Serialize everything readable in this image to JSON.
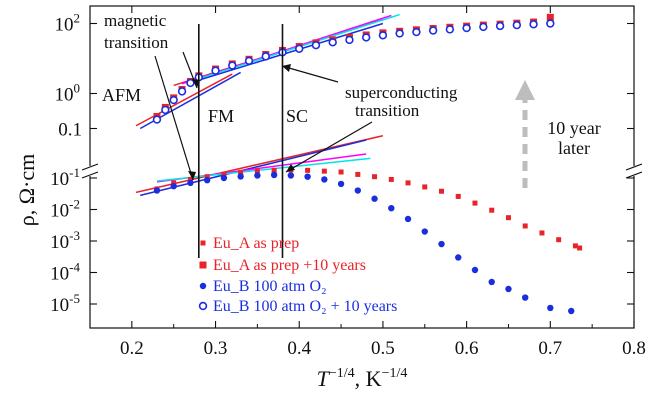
{
  "chart_data": {
    "type": "scatter",
    "xlabel": "T^{-1/4}, K^{-1/4}",
    "ylabel": "ρ, Ω·cm",
    "xlim": [
      0.15,
      0.8
    ],
    "x_ticks": [
      "0.2",
      "0.3",
      "0.4",
      "0.5",
      "0.6",
      "0.7",
      "0.8"
    ],
    "y_log_scale": true,
    "broken_y_axis": true,
    "upper_panel": {
      "ylim_log10": [
        -1.3,
        2.5
      ],
      "y_ticks": [
        {
          "value": 100,
          "label": "10^2"
        },
        {
          "value": 1,
          "label": "10^0"
        },
        {
          "value": 0.1,
          "label": "0.1"
        }
      ]
    },
    "lower_panel": {
      "ylim_log10": [
        -5.5,
        -0.6
      ],
      "y_ticks": [
        {
          "value": 0.1,
          "label": "10^-1"
        },
        {
          "value": 0.01,
          "label": "10^-2"
        },
        {
          "value": 0.001,
          "label": "10^-3"
        },
        {
          "value": 0.0001,
          "label": "10^-4"
        },
        {
          "value": 1e-05,
          "label": "10^-5"
        }
      ]
    },
    "series": [
      {
        "name": "Eu_A as prep",
        "marker": "square-small",
        "color": "#e8232a",
        "panel": "lower",
        "x": [
          0.23,
          0.25,
          0.27,
          0.29,
          0.31,
          0.33,
          0.35,
          0.37,
          0.39,
          0.41,
          0.43,
          0.45,
          0.47,
          0.49,
          0.51,
          0.53,
          0.55,
          0.57,
          0.59,
          0.61,
          0.63,
          0.65,
          0.67,
          0.69,
          0.71,
          0.73,
          0.735
        ],
        "y": [
          0.045,
          0.07,
          0.09,
          0.11,
          0.13,
          0.15,
          0.165,
          0.175,
          0.18,
          0.175,
          0.165,
          0.155,
          0.13,
          0.11,
          0.09,
          0.07,
          0.052,
          0.038,
          0.026,
          0.016,
          0.0095,
          0.0055,
          0.003,
          0.0018,
          0.0011,
          0.0007,
          0.0006
        ]
      },
      {
        "name": "Eu_A as prep +10 years",
        "marker": "square-large",
        "color": "#e8232a",
        "panel": "upper",
        "x": [
          0.23,
          0.24,
          0.25,
          0.26,
          0.27,
          0.28,
          0.3,
          0.32,
          0.34,
          0.36,
          0.38,
          0.4,
          0.42,
          0.44,
          0.46,
          0.48,
          0.5,
          0.52,
          0.54,
          0.56,
          0.58,
          0.6,
          0.62,
          0.64,
          0.66,
          0.68,
          0.7
        ],
        "y": [
          0.22,
          0.4,
          0.75,
          1.3,
          2.2,
          3.2,
          5.0,
          7.0,
          9.5,
          13,
          17,
          22,
          28,
          34,
          40,
          47,
          54,
          60,
          66,
          72,
          78,
          84,
          90,
          96,
          102,
          110,
          150
        ]
      },
      {
        "name": "Eu_B 100 atm O₂",
        "marker": "circle-filled",
        "color": "#1a2ee0",
        "panel": "lower",
        "x": [
          0.23,
          0.25,
          0.27,
          0.29,
          0.31,
          0.33,
          0.35,
          0.37,
          0.39,
          0.41,
          0.43,
          0.45,
          0.47,
          0.49,
          0.51,
          0.53,
          0.55,
          0.57,
          0.59,
          0.61,
          0.63,
          0.65,
          0.67,
          0.7,
          0.725
        ],
        "y": [
          0.04,
          0.055,
          0.07,
          0.085,
          0.1,
          0.112,
          0.12,
          0.125,
          0.12,
          0.11,
          0.09,
          0.065,
          0.04,
          0.022,
          0.011,
          0.005,
          0.002,
          0.0008,
          0.0003,
          0.00012,
          5e-05,
          3e-05,
          1.6e-05,
          7.5e-06,
          6e-06
        ]
      },
      {
        "name": "Eu_B 100 atm O₂ + 10 years",
        "marker": "circle-open",
        "color": "#1a2ee0",
        "panel": "upper",
        "x": [
          0.23,
          0.24,
          0.25,
          0.26,
          0.27,
          0.28,
          0.3,
          0.32,
          0.34,
          0.36,
          0.38,
          0.4,
          0.42,
          0.44,
          0.46,
          0.48,
          0.5,
          0.52,
          0.54,
          0.56,
          0.58,
          0.6,
          0.62,
          0.64,
          0.66,
          0.68,
          0.7
        ],
        "y": [
          0.18,
          0.34,
          0.65,
          1.15,
          2.0,
          2.9,
          4.5,
          6.3,
          8.6,
          11.5,
          15,
          19,
          24,
          29,
          34,
          40,
          46,
          52,
          57,
          63,
          68,
          74,
          80,
          85,
          90,
          95,
          100
        ]
      }
    ],
    "fit_lines": [
      {
        "panel": "upper",
        "color": "#e8232a",
        "x": [
          0.205,
          0.32
        ],
        "y": [
          0.12,
          3.6
        ]
      },
      {
        "panel": "upper",
        "color": "#1a2ee0",
        "x": [
          0.21,
          0.33
        ],
        "y": [
          0.1,
          4.0
        ]
      },
      {
        "panel": "upper",
        "color": "#e8232a",
        "x": [
          0.25,
          0.5
        ],
        "y": [
          1.7,
          130
        ]
      },
      {
        "panel": "upper",
        "color": "#ff00ff",
        "x": [
          0.26,
          0.51
        ],
        "y": [
          1.9,
          170
        ]
      },
      {
        "panel": "upper",
        "color": "#00e5e5",
        "x": [
          0.27,
          0.52
        ],
        "y": [
          2.2,
          180
        ]
      },
      {
        "panel": "upper",
        "color": "#1a2ee0",
        "x": [
          0.28,
          0.5
        ],
        "y": [
          2.4,
          100
        ]
      },
      {
        "panel": "lower",
        "color": "#e8232a",
        "x": [
          0.205,
          0.5
        ],
        "y": [
          0.035,
          2.2
        ]
      },
      {
        "panel": "lower",
        "color": "#1a2ee0",
        "x": [
          0.21,
          0.48
        ],
        "y": [
          0.028,
          1.6
        ]
      },
      {
        "panel": "lower",
        "color": "#ff00ff",
        "x": [
          0.23,
          0.48
        ],
        "y": [
          0.075,
          0.58
        ]
      },
      {
        "panel": "lower",
        "color": "#00e5e5",
        "x": [
          0.23,
          0.485
        ],
        "y": [
          0.08,
          0.42
        ]
      }
    ],
    "vertical_lines": [
      {
        "x": 0.28,
        "label": "FM"
      },
      {
        "x": 0.38,
        "label": "SC"
      }
    ],
    "annotations": {
      "magnetic_transition": "magnetic\ntransition",
      "superconducting_transition": "superconducting\ntransition",
      "afm": "AFM",
      "fm": "FM",
      "sc": "SC",
      "ten_year_later": "10 year\nlater"
    },
    "colors": {
      "eu_a": "#e8232a",
      "eu_b": "#1a2ee0",
      "magenta": "#ff00ff",
      "cyan": "#00e5e5",
      "arrow_gray": "#bdbdbd"
    }
  }
}
